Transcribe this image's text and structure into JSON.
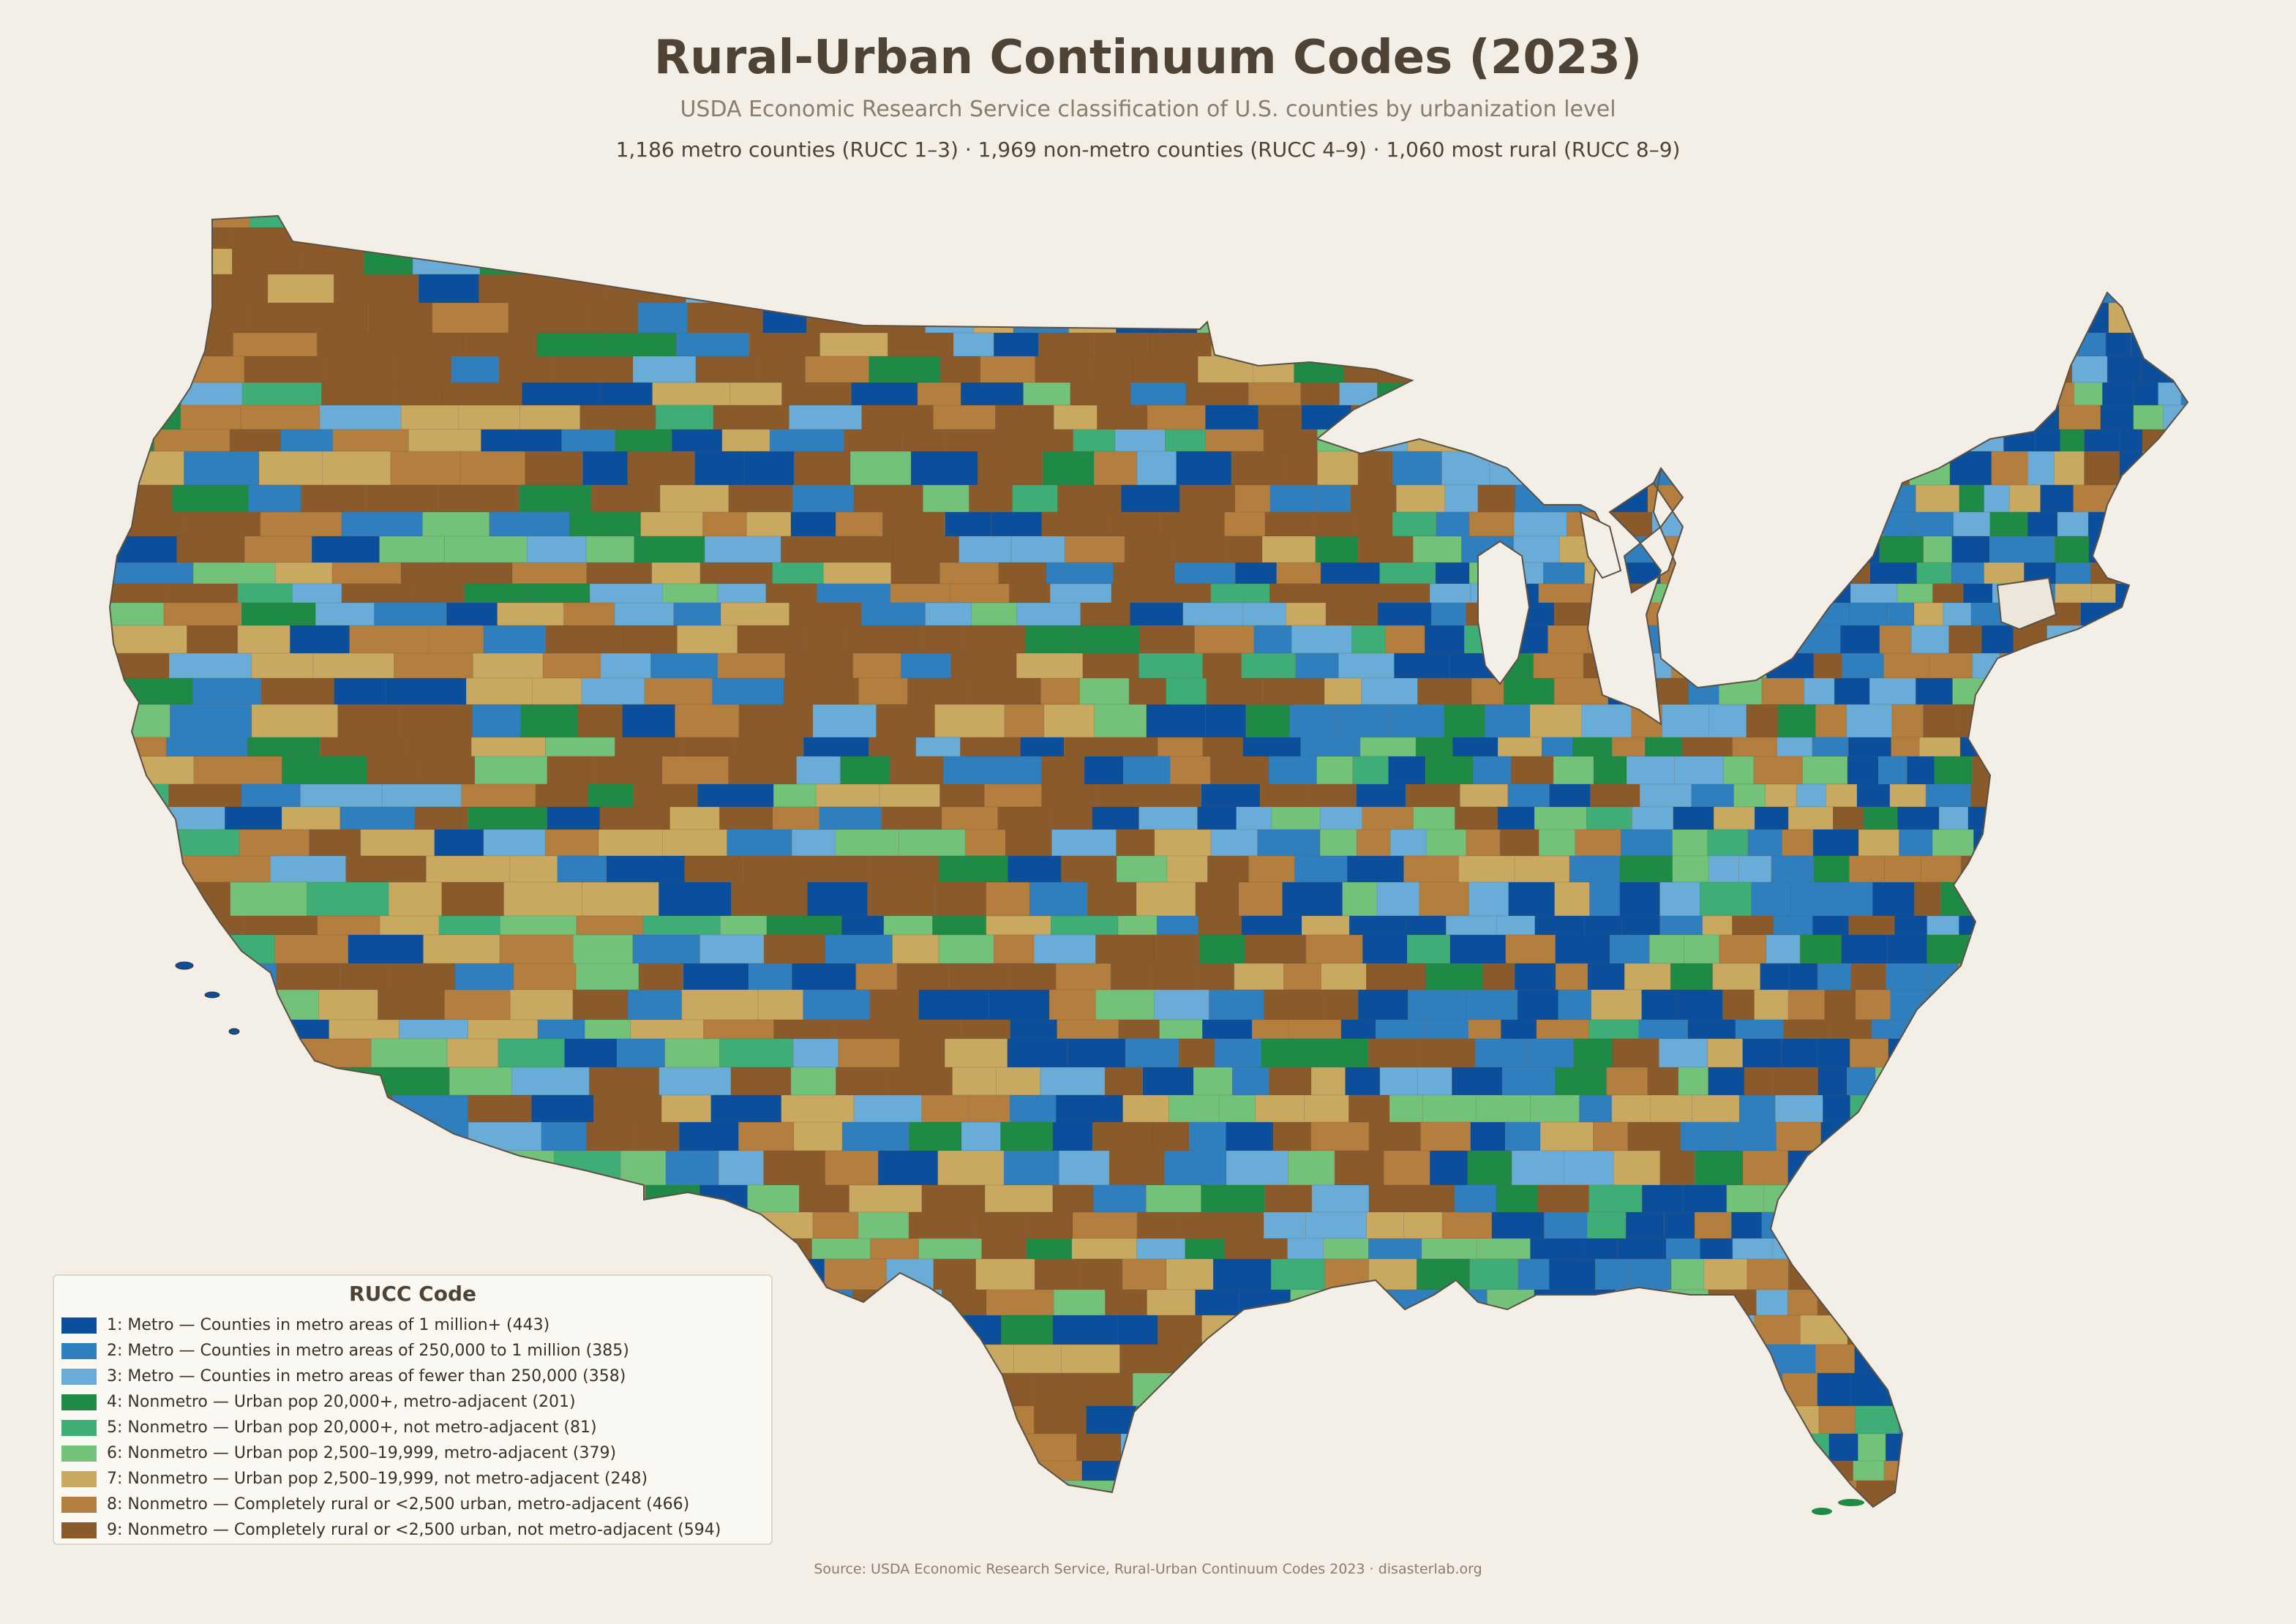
{
  "title": "Rural-Urban Continuum Codes (2023)",
  "subtitle": "USDA Economic Research Service classification of U.S. counties by urbanization level",
  "stats": "1,186 metro counties (RUCC 1–3)  ·  1,969 non-metro counties (RUCC 4–9)  ·  1,060 most rural (RUCC 8–9)",
  "legend": {
    "title": "RUCC Code",
    "items": [
      {
        "code": 1,
        "label": "1: Metro — Counties in metro areas of 1 million+ (443)",
        "color": "#0b4f9c"
      },
      {
        "code": 2,
        "label": "2: Metro — Counties in metro areas of 250,000 to 1 million (385)",
        "color": "#2f7fbf"
      },
      {
        "code": 3,
        "label": "3: Metro — Counties in metro areas of fewer than 250,000 (358)",
        "color": "#69acd8"
      },
      {
        "code": 4,
        "label": "4: Nonmetro — Urban pop 20,000+, metro-adjacent (201)",
        "color": "#1f8a45"
      },
      {
        "code": 5,
        "label": "5: Nonmetro — Urban pop 20,000+, not metro-adjacent (81)",
        "color": "#3fae76"
      },
      {
        "code": 6,
        "label": "6: Nonmetro — Urban pop 2,500–19,999, metro-adjacent (379)",
        "color": "#72c27a"
      },
      {
        "code": 7,
        "label": "7: Nonmetro — Urban pop 2,500–19,999, not metro-adjacent (248)",
        "color": "#c9a85f"
      },
      {
        "code": 8,
        "label": "8: Nonmetro — Completely rural or <2,500 urban, metro-adjacent (466)",
        "color": "#b47e3e"
      },
      {
        "code": 9,
        "label": "9: Nonmetro — Completely rural or <2,500 urban, not metro-adjacent (594)",
        "color": "#8b5a2b"
      }
    ]
  },
  "source": "Source: USDA Economic Research Service, Rural-Urban Continuum Codes 2023  ·  disasterlab.org"
}
